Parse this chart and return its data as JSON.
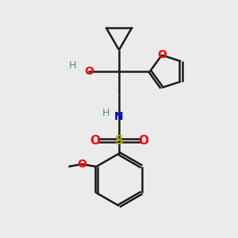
{
  "bg_color": "#ebebeb",
  "bond_color": "#1a1a1a",
  "oxygen_color": "#ff0000",
  "nitrogen_color": "#0000cc",
  "sulfur_color": "#aaaa00",
  "hydrogen_color": "#4a8a8a",
  "line_width": 1.8,
  "figsize": [
    3.0,
    3.0
  ],
  "dpi": 100,
  "xlim": [
    0,
    10
  ],
  "ylim": [
    0,
    10
  ]
}
